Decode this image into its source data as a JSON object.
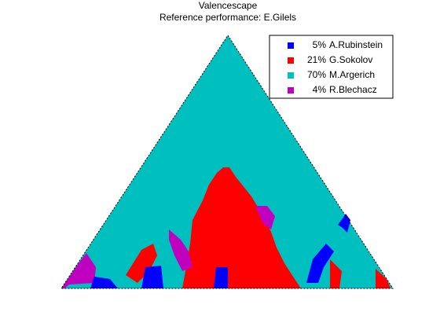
{
  "chart_data": {
    "type": "valencescape",
    "title": "Valencescape",
    "subtitle": "Reference performance: E.Gilels",
    "legend": "upper right",
    "series": [
      {
        "name": "A.Rubinstein",
        "value": 5,
        "value_label": "5%",
        "color": "#0000ff"
      },
      {
        "name": "G.Sokolov",
        "value": 21,
        "value_label": "21%",
        "color": "#ff0000"
      },
      {
        "name": "M.Argerich",
        "value": 70,
        "value_label": "70%",
        "color": "#00bfbf"
      },
      {
        "name": "R.Blechacz",
        "value": 4,
        "value_label": "4%",
        "color": "#bf00bf"
      }
    ]
  }
}
